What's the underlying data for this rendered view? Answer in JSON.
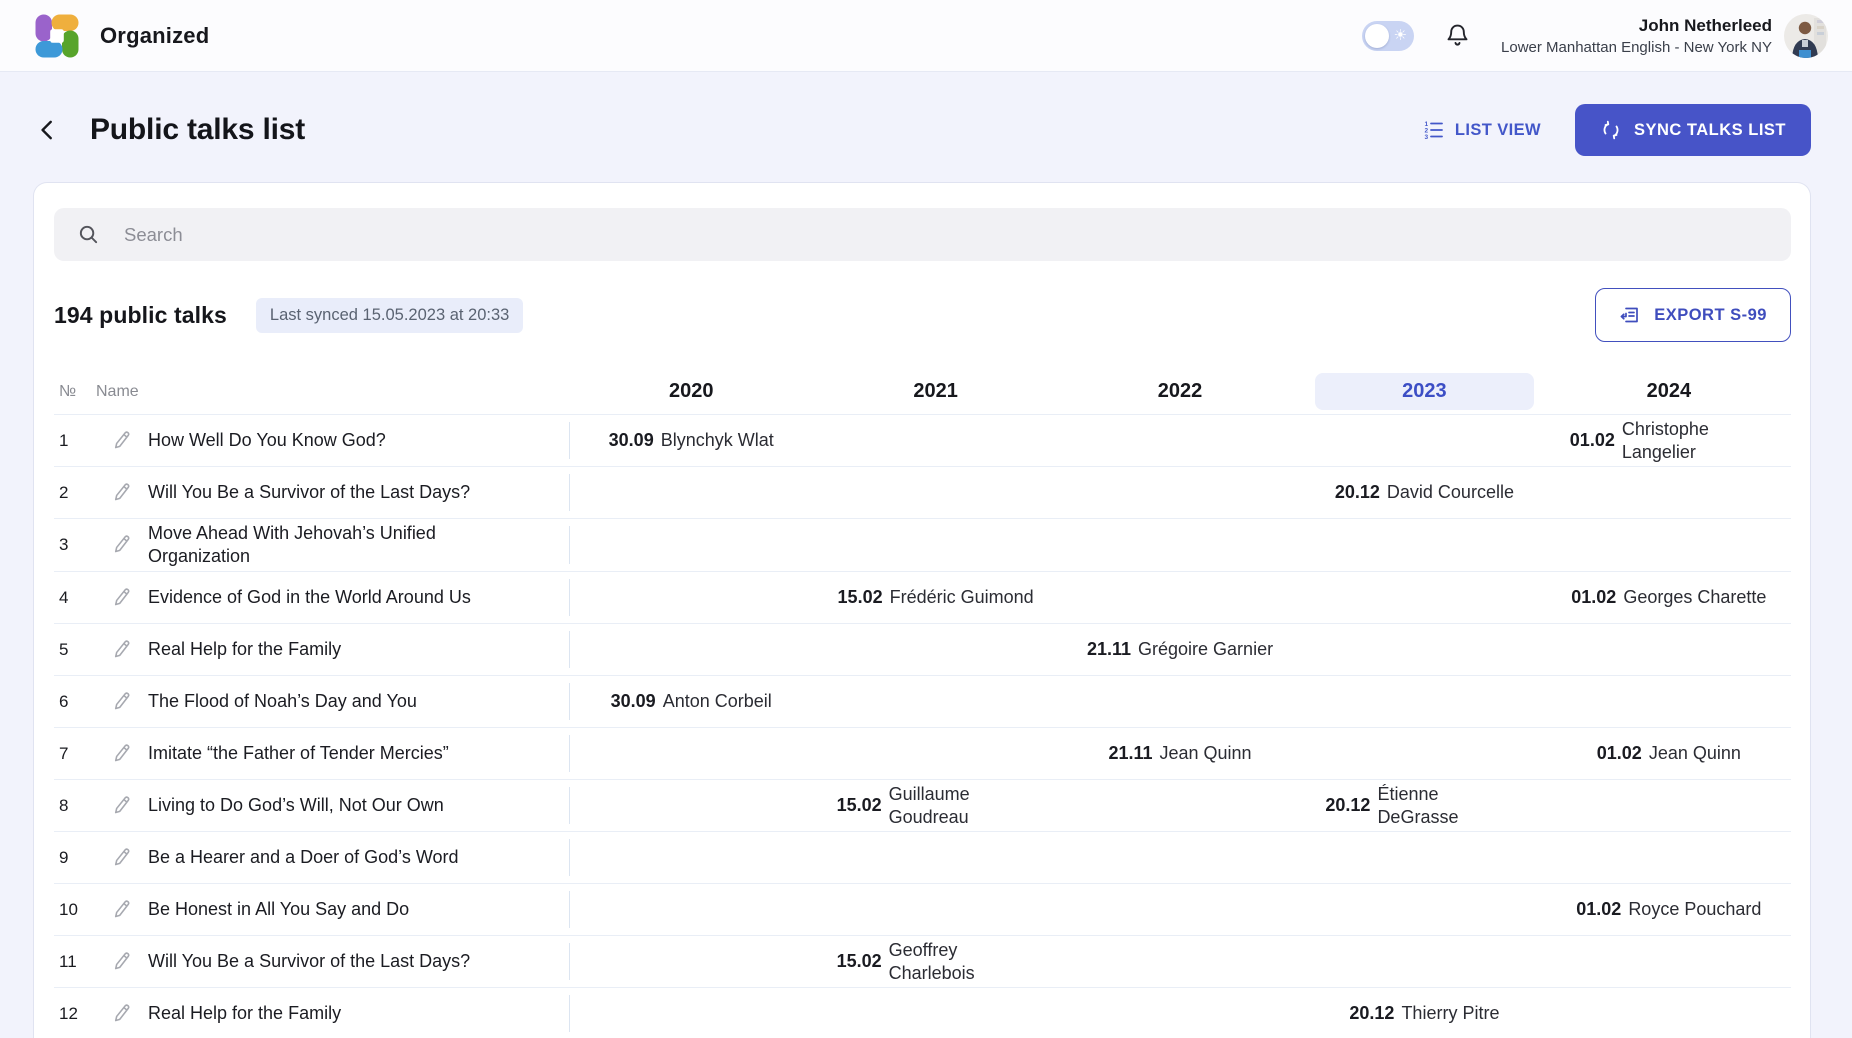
{
  "header": {
    "app_name": "Organized",
    "user": {
      "name": "John Netherleed",
      "congregation": "Lower Manhattan English - New York NY"
    }
  },
  "page": {
    "title": "Public talks list",
    "list_view_label": "LIST VIEW",
    "sync_label": "SYNC TALKS LIST"
  },
  "toolbar": {
    "search_placeholder": "Search",
    "talks_count": "194 public talks",
    "last_synced": "Last synced 15.05.2023 at 20:33",
    "export_label": "EXPORT S-99"
  },
  "table": {
    "col_num": "№",
    "col_name": "Name",
    "years": [
      "2020",
      "2021",
      "2022",
      "2023",
      "2024"
    ],
    "active_year": "2023",
    "rows": [
      {
        "num": "1",
        "name": "How Well Do You Know God?",
        "cells": {
          "2020": {
            "date": "30.09",
            "speaker": "Blynchyk Wlat"
          },
          "2024": {
            "date": "01.02",
            "speaker": "Christophe Langelier"
          }
        }
      },
      {
        "num": "2",
        "name": "Will You Be a Survivor of the Last Days?",
        "cells": {
          "2023": {
            "date": "20.12",
            "speaker": "David Courcelle"
          }
        }
      },
      {
        "num": "3",
        "name": "Move Ahead With Jehovah’s Unified Organization",
        "cells": {}
      },
      {
        "num": "4",
        "name": "Evidence of God in the World Around Us",
        "cells": {
          "2021": {
            "date": "15.02",
            "speaker": "Frédéric Guimond"
          },
          "2024": {
            "date": "01.02",
            "speaker": "Georges Charette"
          }
        }
      },
      {
        "num": "5",
        "name": "Real Help for the Family",
        "cells": {
          "2022": {
            "date": "21.11",
            "speaker": "Grégoire Garnier"
          }
        }
      },
      {
        "num": "6",
        "name": "The Flood of Noah’s Day and You",
        "cells": {
          "2020": {
            "date": "30.09",
            "speaker": "Anton Corbeil"
          }
        }
      },
      {
        "num": "7",
        "name": "Imitate “the Father of Tender Mercies”",
        "cells": {
          "2022": {
            "date": "21.11",
            "speaker": "Jean Quinn"
          },
          "2024": {
            "date": "01.02",
            "speaker": "Jean Quinn"
          }
        }
      },
      {
        "num": "8",
        "name": "Living to Do God’s Will, Not Our Own",
        "cells": {
          "2021": {
            "date": "15.02",
            "speaker": "Guillaume Goudreau"
          },
          "2023": {
            "date": "20.12",
            "speaker": "Étienne DeGrasse"
          }
        }
      },
      {
        "num": "9",
        "name": "Be a Hearer and a Doer of God’s Word",
        "cells": {}
      },
      {
        "num": "10",
        "name": "Be Honest in All You Say and Do",
        "cells": {
          "2024": {
            "date": "01.02",
            "speaker": "Royce Pouchard"
          }
        }
      },
      {
        "num": "11",
        "name": "Will You Be a Survivor of the Last Days?",
        "cells": {
          "2021": {
            "date": "15.02",
            "speaker": "Geoffrey Charlebois"
          }
        }
      },
      {
        "num": "12",
        "name": "Real Help for the Family",
        "cells": {
          "2023": {
            "date": "20.12",
            "speaker": "Thierry Pitre"
          }
        }
      }
    ]
  },
  "icons": {
    "logo-icon": "four-color pinwheel squares",
    "theme-toggle-sun-icon": "☀",
    "notifications-bell-icon": "bell outline",
    "back-chevron-icon": "‹",
    "list-view-icon": "numbered list 1-2-3",
    "sync-icon": "two circular arrows",
    "search-icon": "magnifier",
    "export-icon": "document with return arrow",
    "edit-pencil-icon": "pencil outline"
  },
  "colors": {
    "accent": "#4754C8",
    "accent_text": "#4357C9",
    "page_bg": "#F2F3FC",
    "card_bg": "#FFFFFF",
    "badge_bg": "#E9EDFA",
    "badge_text": "#5A6372",
    "active_year_bg": "#ECEFFB",
    "active_year_text": "#3C4EC5",
    "row_border": "#E9EEF6",
    "search_bg": "#F1F1F4",
    "logo_purple": "#9A63CB",
    "logo_orange": "#EFAF3D",
    "logo_blue": "#3D99D8",
    "logo_green": "#57A42B"
  }
}
